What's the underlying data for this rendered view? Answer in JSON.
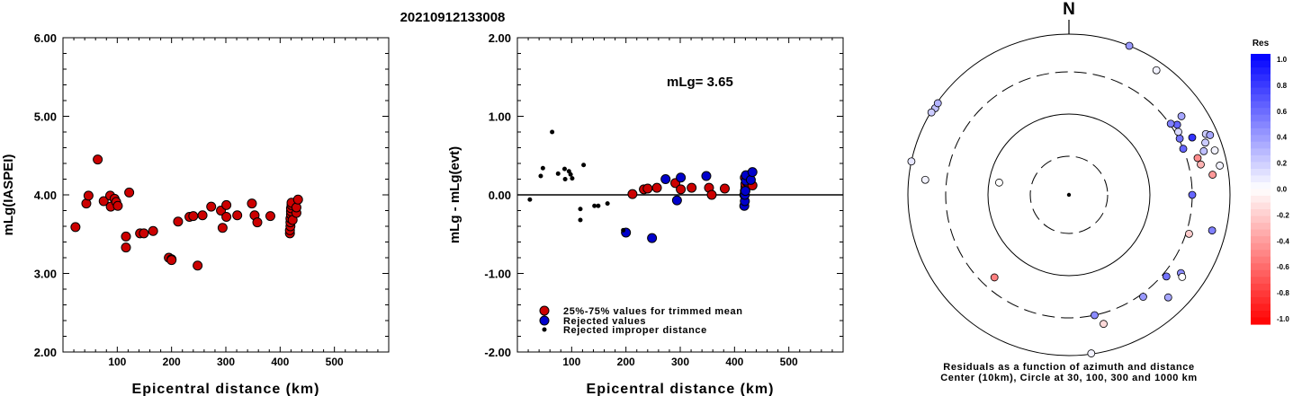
{
  "title": "20210912133008",
  "chart_data": [
    {
      "type": "scatter",
      "ylabel": "mLg(IASPEI)",
      "xlabel": "Epicentral distance (km)",
      "xlim": [
        0,
        600
      ],
      "ylim": [
        2.0,
        6.0
      ],
      "x_ticks": [
        "100",
        "200",
        "300",
        "400",
        "500"
      ],
      "y_ticks": [
        "2.00",
        "3.00",
        "4.00",
        "5.00",
        "6.00"
      ],
      "series": [
        {
          "color": "#cc0000",
          "points": [
            [
              23,
              3.59
            ],
            [
              43,
              3.89
            ],
            [
              47,
              3.99
            ],
            [
              64,
              4.45
            ],
            [
              75,
              3.92
            ],
            [
              87,
              3.99
            ],
            [
              88,
              3.85
            ],
            [
              95,
              3.95
            ],
            [
              98,
              3.91
            ],
            [
              101,
              3.86
            ],
            [
              116,
              3.47
            ],
            [
              116,
              3.33
            ],
            [
              122,
              4.03
            ],
            [
              142,
              3.51
            ],
            [
              149,
              3.51
            ],
            [
              166,
              3.54
            ],
            [
              195,
              3.2
            ],
            [
              200,
              3.18
            ],
            [
              200,
              3.17
            ],
            [
              212,
              3.66
            ],
            [
              233,
              3.72
            ],
            [
              240,
              3.73
            ],
            [
              248,
              3.1
            ],
            [
              257,
              3.74
            ],
            [
              273,
              3.85
            ],
            [
              291,
              3.8
            ],
            [
              294,
              3.58
            ],
            [
              301,
              3.87
            ],
            [
              301,
              3.72
            ],
            [
              321,
              3.74
            ],
            [
              348,
              3.89
            ],
            [
              353,
              3.74
            ],
            [
              358,
              3.65
            ],
            [
              382,
              3.73
            ],
            [
              418,
              3.51
            ],
            [
              418,
              3.55
            ],
            [
              419,
              3.6
            ],
            [
              419,
              3.65
            ],
            [
              419,
              3.7
            ],
            [
              420,
              3.75
            ],
            [
              420,
              3.79
            ],
            [
              420,
              3.83
            ],
            [
              421,
              3.87
            ],
            [
              421,
              3.9
            ],
            [
              423,
              3.68
            ],
            [
              430,
              3.77
            ],
            [
              430,
              3.84
            ],
            [
              433,
              3.94
            ]
          ]
        }
      ]
    },
    {
      "type": "scatter",
      "ylabel": "mLg - mLg(evt)",
      "xlabel": "Epicentral distance (km)",
      "xlim": [
        0,
        600
      ],
      "ylim": [
        -2.0,
        2.0
      ],
      "x_ticks": [
        "100",
        "200",
        "300",
        "400",
        "500"
      ],
      "y_ticks": [
        "-2.00",
        "-1.00",
        "0.00",
        "1.00",
        "2.00"
      ],
      "annotation": "mLg= 3.65",
      "reference_line": 0.0,
      "legend": [
        "25%-75% values for trimmed mean",
        "Rejected values",
        "Rejected improper distance"
      ],
      "series": [
        {
          "color": "#cc0000",
          "points": [
            [
              212,
              0.01
            ],
            [
              233,
              0.07
            ],
            [
              240,
              0.08
            ],
            [
              257,
              0.09
            ],
            [
              291,
              0.15
            ],
            [
              301,
              0.07
            ],
            [
              321,
              0.09
            ],
            [
              353,
              0.09
            ],
            [
              358,
              0.0
            ],
            [
              382,
              0.08
            ],
            [
              418,
              0.0
            ],
            [
              419,
              0.05
            ],
            [
              420,
              0.1
            ],
            [
              420,
              0.14
            ],
            [
              423,
              0.16
            ],
            [
              433,
              0.12
            ],
            [
              419,
              0.22
            ]
          ]
        },
        {
          "color": "#0000cc",
          "points": [
            [
              200,
              -0.48
            ],
            [
              248,
              -0.55
            ],
            [
              273,
              0.2
            ],
            [
              294,
              -0.07
            ],
            [
              301,
              0.22
            ],
            [
              348,
              0.24
            ],
            [
              418,
              -0.14
            ],
            [
              419,
              -0.08
            ],
            [
              419,
              0.0
            ],
            [
              420,
              0.05
            ],
            [
              421,
              0.18
            ],
            [
              421,
              0.25
            ],
            [
              430,
              0.19
            ],
            [
              433,
              0.29
            ]
          ]
        },
        {
          "color": "#000000",
          "points": [
            [
              23,
              -0.06
            ],
            [
              43,
              0.24
            ],
            [
              47,
              0.34
            ],
            [
              64,
              0.8
            ],
            [
              75,
              0.27
            ],
            [
              87,
              0.33
            ],
            [
              88,
              0.2
            ],
            [
              95,
              0.3
            ],
            [
              98,
              0.26
            ],
            [
              101,
              0.21
            ],
            [
              116,
              -0.18
            ],
            [
              116,
              -0.32
            ],
            [
              122,
              0.38
            ],
            [
              142,
              -0.14
            ],
            [
              149,
              -0.14
            ],
            [
              166,
              -0.11
            ],
            [
              195,
              -0.45
            ]
          ]
        }
      ]
    },
    {
      "type": "polar",
      "north_label": "N",
      "colorbar_title": "Res",
      "colorbar_ticks": [
        "1.0",
        "0.8",
        "0.6",
        "0.4",
        "0.2",
        "0.0",
        "-0.2",
        "-0.4",
        "-0.6",
        "-0.8",
        "-1.0"
      ],
      "caption": [
        "Residuals as a function of azimuth and distance",
        "Center (10km), Circle at 30, 100, 300 and 1000 km"
      ],
      "rings_km": [
        30,
        100,
        300,
        1000
      ],
      "points": [
        {
          "az": 303,
          "dist": 950,
          "res": 0.25
        },
        {
          "az": 305,
          "dist": 970,
          "res": 0.3
        },
        {
          "az": 301,
          "dist": 980,
          "res": 0.2
        },
        {
          "az": 276,
          "dist": 590,
          "res": 0.05
        },
        {
          "az": 282,
          "dist": 1400,
          "res": 0.1
        },
        {
          "az": 35,
          "dist": 760,
          "res": 0.05
        },
        {
          "az": 22,
          "dist": 1150,
          "res": 0.4
        },
        {
          "az": 57,
          "dist": 360,
          "res": 0.6
        },
        {
          "az": 55,
          "dist": 470,
          "res": 0.35
        },
        {
          "az": 65,
          "dist": 450,
          "res": 0.8
        },
        {
          "az": 55,
          "dist": 310,
          "res": 0.5
        },
        {
          "az": 63,
          "dist": 310,
          "res": 0.55
        },
        {
          "az": 60,
          "dist": 330,
          "res": 0.15
        },
        {
          "az": 68,
          "dist": 300,
          "res": 0.6
        },
        {
          "az": 77,
          "dist": 440,
          "res": -0.3
        },
        {
          "az": 74,
          "dist": 420,
          "res": -0.45
        },
        {
          "az": 72,
          "dist": 540,
          "res": 0.25
        },
        {
          "az": 69,
          "dist": 620,
          "res": 0.2
        },
        {
          "az": 66,
          "dist": 700,
          "res": 0.2
        },
        {
          "az": 67,
          "dist": 780,
          "res": 0.35
        },
        {
          "az": 73,
          "dist": 760,
          "res": 0.05
        },
        {
          "az": 82,
          "dist": 600,
          "res": -0.4
        },
        {
          "az": 79,
          "dist": 790,
          "res": 0.05
        },
        {
          "az": 90,
          "dist": 300,
          "res": 0.6
        },
        {
          "az": 108,
          "dist": 330,
          "res": -0.2
        },
        {
          "az": 104,
          "dist": 650,
          "res": 0.5
        },
        {
          "az": 130,
          "dist": 340,
          "res": 0.55
        },
        {
          "az": 125,
          "dist": 460,
          "res": 0.45
        },
        {
          "az": 126,
          "dist": 510,
          "res": 0.0
        },
        {
          "az": 136,
          "dist": 560,
          "res": 0.35
        },
        {
          "az": 144,
          "dist": 330,
          "res": 0.4
        },
        {
          "az": 168,
          "dist": 300,
          "res": 0.45
        },
        {
          "az": 165,
          "dist": 420,
          "res": -0.15
        },
        {
          "az": 172,
          "dist": 980,
          "res": 0.05
        },
        {
          "az": 222,
          "dist": 220,
          "res": -0.5
        },
        {
          "az": 280,
          "dist": 75,
          "res": 0.0
        }
      ]
    }
  ]
}
